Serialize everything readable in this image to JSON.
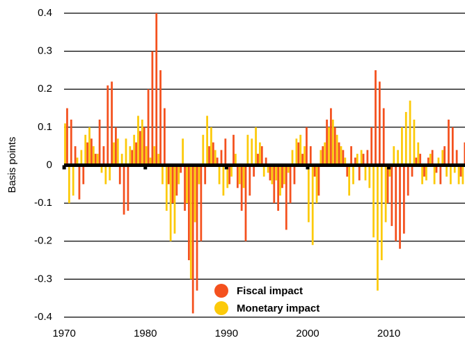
{
  "chart_data": {
    "type": "bar",
    "y_label": "Basis points",
    "x": [
      1970,
      1970.5,
      1971,
      1971.5,
      1972,
      1972.5,
      1973,
      1973.5,
      1974,
      1974.5,
      1975,
      1975.5,
      1976,
      1976.5,
      1977,
      1977.5,
      1978,
      1978.5,
      1979,
      1979.5,
      1980,
      1980.5,
      1981,
      1981.5,
      1982,
      1982.5,
      1983,
      1983.5,
      1984,
      1984.5,
      1985,
      1985.5,
      1986,
      1986.5,
      1987,
      1987.5,
      1988,
      1988.5,
      1989,
      1989.5,
      1990,
      1990.5,
      1991,
      1991.5,
      1992,
      1992.5,
      1993,
      1993.5,
      1994,
      1994.5,
      1995,
      1995.5,
      1996,
      1996.5,
      1997,
      1997.5,
      1998,
      1998.5,
      1999,
      1999.5,
      2000,
      2000.5,
      2001,
      2001.5,
      2002,
      2002.5,
      2003,
      2003.5,
      2004,
      2004.5,
      2005,
      2005.5,
      2006,
      2006.5,
      2007,
      2007.5,
      2008,
      2008.5,
      2009,
      2009.5,
      2010,
      2010.5,
      2011,
      2011.5,
      2012,
      2012.5,
      2013,
      2013.5,
      2014,
      2014.5,
      2015,
      2015.5,
      2016,
      2016.5,
      2017,
      2017.5,
      2018,
      2018.5,
      2019
    ],
    "series": [
      {
        "name": "Fiscal impact",
        "color": "#f4511e",
        "values": [
          0.15,
          0.12,
          0.05,
          -0.09,
          -0.05,
          0.06,
          0.07,
          0.03,
          0.12,
          0.05,
          0.21,
          0.22,
          0.1,
          -0.05,
          -0.13,
          -0.12,
          0.04,
          0.06,
          0.09,
          0.1,
          0.2,
          0.3,
          0.4,
          0.25,
          0.15,
          -0.05,
          -0.1,
          -0.08,
          -0.02,
          -0.12,
          -0.25,
          -0.39,
          -0.33,
          -0.2,
          -0.05,
          0.05,
          0.06,
          0.02,
          0.04,
          0.07,
          -0.05,
          0.08,
          -0.06,
          -0.12,
          -0.2,
          -0.08,
          -0.03,
          0.03,
          0.05,
          0.02,
          -0.04,
          -0.1,
          -0.12,
          -0.06,
          -0.17,
          -0.1,
          -0.05,
          0.06,
          0.03,
          0.1,
          0.05,
          -0.03,
          -0.08,
          0.05,
          0.12,
          0.15,
          0.1,
          0.06,
          0.04,
          -0.03,
          0.05,
          0.02,
          -0.04,
          0.03,
          0.04,
          0.1,
          0.25,
          0.22,
          0.15,
          -0.1,
          -0.16,
          -0.2,
          -0.22,
          -0.18,
          -0.08,
          -0.03,
          0.02,
          0.03,
          -0.03,
          0.02,
          0.04,
          -0.02,
          -0.05,
          0.05,
          0.12,
          0.1,
          0.04,
          -0.03,
          0.06
        ]
      },
      {
        "name": "Monetary impact",
        "color": "#fcca0a",
        "values": [
          0.11,
          -0.1,
          -0.08,
          0.02,
          0.04,
          0.08,
          0.1,
          0.05,
          0.03,
          -0.02,
          -0.05,
          -0.04,
          0.06,
          0.07,
          0.03,
          0.07,
          0.05,
          0.08,
          0.13,
          0.12,
          0.05,
          0.02,
          0.05,
          0.03,
          -0.05,
          -0.12,
          -0.2,
          -0.18,
          -0.05,
          0.07,
          -0.1,
          -0.3,
          -0.15,
          -0.05,
          0.08,
          0.13,
          0.1,
          0.04,
          -0.05,
          -0.08,
          -0.06,
          -0.03,
          0.03,
          -0.05,
          -0.06,
          0.08,
          0.07,
          0.1,
          0.06,
          -0.03,
          -0.02,
          -0.05,
          -0.04,
          -0.08,
          -0.05,
          -0.02,
          0.04,
          0.07,
          0.08,
          0.05,
          -0.15,
          -0.21,
          -0.1,
          0.04,
          0.06,
          0.1,
          0.12,
          0.08,
          0.05,
          0.02,
          -0.08,
          -0.05,
          0.03,
          0.04,
          -0.04,
          -0.06,
          -0.19,
          -0.33,
          -0.25,
          -0.15,
          -0.03,
          0.05,
          0.04,
          0.1,
          0.14,
          0.17,
          0.12,
          0.06,
          -0.05,
          -0.04,
          0.03,
          -0.05,
          0.02,
          0.04,
          -0.03,
          -0.05,
          -0.02,
          -0.05,
          -0.05
        ]
      }
    ],
    "xlim": [
      1969.9,
      2019.3
    ],
    "xticks": [
      1970,
      1980,
      1990,
      2000,
      2010
    ],
    "ylim": [
      -0.4,
      0.4
    ],
    "yticks": [
      -0.4,
      -0.3,
      -0.2,
      -0.1,
      0,
      0.1,
      0.2,
      0.3,
      0.4
    ],
    "grid": true,
    "legend": "lower center"
  }
}
